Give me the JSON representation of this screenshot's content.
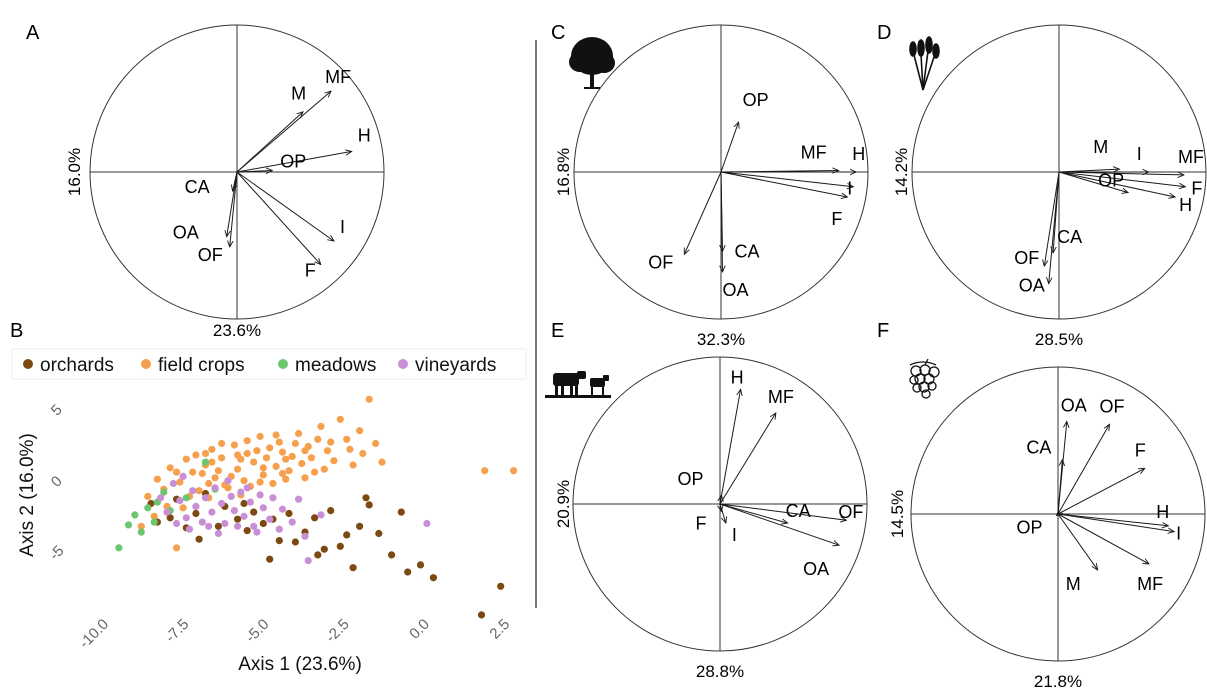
{
  "colors": {
    "orchards": "#7b4a12",
    "field_crops": "#f6a04d",
    "meadows": "#6cc66f",
    "vineyards": "#c98fd6",
    "ink": "#1a1a1a"
  },
  "chart_data": [
    {
      "id": "A",
      "type": "pca-correlation-circle",
      "panel_label": "A",
      "icon": "",
      "xlabel": "23.6%",
      "ylabel": "16.0%",
      "vectors": [
        {
          "label": "M",
          "x": 0.45,
          "y": 0.41
        },
        {
          "label": "MF",
          "x": 0.64,
          "y": 0.55
        },
        {
          "label": "H",
          "x": 0.78,
          "y": 0.14
        },
        {
          "label": "OP",
          "x": 0.24,
          "y": 0.01
        },
        {
          "label": "I",
          "x": 0.66,
          "y": -0.47
        },
        {
          "label": "F",
          "x": 0.57,
          "y": -0.63
        },
        {
          "label": "CA",
          "x": -0.03,
          "y": -0.13
        },
        {
          "label": "OA",
          "x": -0.07,
          "y": -0.44
        },
        {
          "label": "OF",
          "x": -0.05,
          "y": -0.51
        }
      ]
    },
    {
      "id": "B",
      "type": "scatter",
      "panel_label": "B",
      "title": "",
      "xlabel": "Axis 1 (23.6%)",
      "ylabel": "Axis 2 (16.0%)",
      "xlim": [
        -10.6,
        2.8
      ],
      "ylim": [
        -8.9,
        6.3
      ],
      "xticks": [
        -10.0,
        -7.5,
        -5.0,
        -2.5,
        0.0,
        2.5
      ],
      "xtick_labels": [
        "-10.0",
        "-7.5",
        "-5.0",
        "-2.5",
        "0.0",
        "2.5"
      ],
      "yticks": [
        5,
        0,
        -5
      ],
      "ytick_labels": [
        "5",
        "0",
        "-5"
      ],
      "legend_position": "top",
      "series": [
        {
          "name": "orchards",
          "color": "#7b4a12",
          "points": [
            [
              -8.7,
              -1.3
            ],
            [
              -8.5,
              -2.6
            ],
            [
              -8.1,
              -2.3
            ],
            [
              -7.9,
              -1.0
            ],
            [
              -7.6,
              -3.0
            ],
            [
              -7.3,
              -2.0
            ],
            [
              -7.0,
              -0.6
            ],
            [
              -6.6,
              -2.9
            ],
            [
              -6.4,
              -1.5
            ],
            [
              -6.0,
              -2.4
            ],
            [
              -5.7,
              -3.2
            ],
            [
              -5.5,
              -1.9
            ],
            [
              -5.2,
              -2.7
            ],
            [
              -5.0,
              -5.2
            ],
            [
              -4.7,
              -3.9
            ],
            [
              -4.4,
              -2.0
            ],
            [
              -4.2,
              -4.0
            ],
            [
              -3.9,
              -3.3
            ],
            [
              -3.6,
              -2.3
            ],
            [
              -3.3,
              -4.5
            ],
            [
              -3.1,
              -1.8
            ],
            [
              -2.8,
              -4.3
            ],
            [
              -2.6,
              -3.5
            ],
            [
              -2.4,
              -5.8
            ],
            [
              -2.2,
              -2.9
            ],
            [
              -1.9,
              -1.4
            ],
            [
              -1.6,
              -3.4
            ],
            [
              -1.2,
              -4.9
            ],
            [
              -0.9,
              -1.9
            ],
            [
              -0.7,
              -6.1
            ],
            [
              -0.3,
              -5.6
            ],
            [
              0.1,
              -6.5
            ],
            [
              1.6,
              -9.1
            ],
            [
              2.2,
              -7.1
            ],
            [
              -2.0,
              -0.9
            ],
            [
              -5.8,
              -1.3
            ],
            [
              -7.2,
              -3.8
            ],
            [
              -4.9,
              -2.4
            ],
            [
              -3.5,
              -4.9
            ]
          ]
        },
        {
          "name": "field crops",
          "color": "#f6a04d",
          "points": [
            [
              -9.0,
              -2.9
            ],
            [
              -8.8,
              -0.8
            ],
            [
              -8.5,
              0.4
            ],
            [
              -8.3,
              -0.3
            ],
            [
              -8.1,
              1.2
            ],
            [
              -7.9,
              -4.4
            ],
            [
              -7.8,
              0.2
            ],
            [
              -7.6,
              1.8
            ],
            [
              -7.4,
              0.9
            ],
            [
              -7.2,
              -0.4
            ],
            [
              -7.0,
              1.4
            ],
            [
              -6.8,
              2.5
            ],
            [
              -6.7,
              0.5
            ],
            [
              -6.5,
              1.9
            ],
            [
              -6.3,
              -0.2
            ],
            [
              -6.1,
              2.8
            ],
            [
              -6.0,
              1.1
            ],
            [
              -5.8,
              0.3
            ],
            [
              -5.7,
              2.2
            ],
            [
              -5.5,
              1.6
            ],
            [
              -5.3,
              3.4
            ],
            [
              -5.2,
              0.7
            ],
            [
              -5.0,
              2.6
            ],
            [
              -4.8,
              1.3
            ],
            [
              -4.7,
              3.0
            ],
            [
              -4.5,
              0.4
            ],
            [
              -4.3,
              2.0
            ],
            [
              -4.1,
              3.6
            ],
            [
              -4.0,
              1.5
            ],
            [
              -3.8,
              2.7
            ],
            [
              -3.6,
              0.9
            ],
            [
              -3.4,
              4.1
            ],
            [
              -3.2,
              2.4
            ],
            [
              -3.0,
              1.7
            ],
            [
              -2.8,
              4.6
            ],
            [
              -2.6,
              3.2
            ],
            [
              -2.4,
              1.4
            ],
            [
              -2.2,
              3.8
            ],
            [
              -2.1,
              2.2
            ],
            [
              -1.9,
              6.0
            ],
            [
              -1.7,
              2.9
            ],
            [
              -1.5,
              1.6
            ],
            [
              1.7,
              1.0
            ],
            [
              2.6,
              1.0
            ],
            [
              -7.1,
              0.8
            ],
            [
              -6.9,
              -0.9
            ],
            [
              -6.6,
              1.0
            ],
            [
              -6.2,
              0.6
            ],
            [
              -5.9,
              1.8
            ],
            [
              -5.6,
              -0.1
            ],
            [
              -5.4,
              2.4
            ],
            [
              -5.1,
              1.9
            ],
            [
              -4.9,
              0.1
            ],
            [
              -4.6,
              2.3
            ],
            [
              -4.4,
              1.0
            ],
            [
              -4.2,
              2.9
            ],
            [
              -3.9,
              0.5
            ],
            [
              -3.7,
              1.9
            ],
            [
              -3.5,
              3.2
            ],
            [
              -3.3,
              1.1
            ],
            [
              -8.6,
              -2.2
            ],
            [
              -7.7,
              -1.6
            ],
            [
              -7.5,
              -0.8
            ],
            [
              -6.4,
              0.0
            ],
            [
              -5.9,
              -0.7
            ],
            [
              -6.8,
              1.6
            ],
            [
              -6.0,
              2.1
            ],
            [
              -5.2,
              1.2
            ],
            [
              -4.5,
              1.8
            ],
            [
              -3.9,
              2.4
            ],
            [
              -7.3,
              2.1
            ],
            [
              -6.5,
              2.9
            ],
            [
              -5.7,
              3.1
            ],
            [
              -4.8,
              3.5
            ],
            [
              -3.1,
              3.0
            ],
            [
              -2.5,
              2.5
            ],
            [
              -7.9,
              0.9
            ],
            [
              -6.9,
              0.1
            ],
            [
              -5.3,
              0.2
            ],
            [
              -4.6,
              0.8
            ],
            [
              -8.2,
              -1.5
            ],
            [
              -7.0,
              2.2
            ]
          ]
        },
        {
          "name": "meadows",
          "color": "#6cc66f",
          "points": [
            [
              -9.7,
              -4.4
            ],
            [
              -9.4,
              -2.8
            ],
            [
              -9.2,
              -2.1
            ],
            [
              -9.0,
              -3.3
            ],
            [
              -8.8,
              -1.6
            ],
            [
              -8.6,
              -2.6
            ],
            [
              -8.5,
              -1.2
            ],
            [
              -8.3,
              -0.5
            ],
            [
              -8.1,
              -1.8
            ],
            [
              -7.6,
              -0.9
            ],
            [
              -7.0,
              1.6
            ],
            [
              -6.7,
              -0.3
            ]
          ]
        },
        {
          "name": "vineyards",
          "color": "#c98fd6",
          "points": [
            [
              -8.4,
              -0.9
            ],
            [
              -8.2,
              -1.9
            ],
            [
              -8.0,
              0.1
            ],
            [
              -7.8,
              -1.1
            ],
            [
              -7.6,
              -2.3
            ],
            [
              -7.4,
              -0.4
            ],
            [
              -7.3,
              -1.5
            ],
            [
              -7.1,
              -2.6
            ],
            [
              -7.0,
              -0.9
            ],
            [
              -6.8,
              -1.9
            ],
            [
              -6.7,
              -0.2
            ],
            [
              -6.5,
              -1.3
            ],
            [
              -6.4,
              -2.7
            ],
            [
              -6.2,
              -0.8
            ],
            [
              -6.1,
              -1.8
            ],
            [
              -5.9,
              -0.5
            ],
            [
              -5.8,
              -2.2
            ],
            [
              -5.6,
              -1.2
            ],
            [
              -5.5,
              -2.9
            ],
            [
              -5.3,
              -0.7
            ],
            [
              -5.2,
              -1.6
            ],
            [
              -5.0,
              -2.4
            ],
            [
              -4.9,
              -0.9
            ],
            [
              -4.7,
              -3.1
            ],
            [
              -4.6,
              -1.7
            ],
            [
              -4.3,
              -2.6
            ],
            [
              -4.1,
              -1.0
            ],
            [
              -3.9,
              -3.6
            ],
            [
              -3.8,
              -5.3
            ],
            [
              -3.4,
              -2.1
            ],
            [
              -0.1,
              -2.7
            ],
            [
              -7.9,
              -2.7
            ],
            [
              -7.5,
              -3.1
            ],
            [
              -6.9,
              -2.9
            ],
            [
              -6.6,
              -3.4
            ],
            [
              -6.0,
              -2.9
            ],
            [
              -5.4,
              -3.3
            ],
            [
              -5.7,
              -0.2
            ],
            [
              -6.3,
              0.3
            ],
            [
              -7.7,
              0.6
            ]
          ]
        }
      ]
    },
    {
      "id": "C",
      "type": "pca-correlation-circle",
      "panel_label": "C",
      "icon": "tree-icon",
      "xlabel": "32.3%",
      "ylabel": "16.8%",
      "vectors": [
        {
          "label": "OP",
          "x": 0.12,
          "y": 0.34
        },
        {
          "label": "MF",
          "x": 0.8,
          "y": 0.01
        },
        {
          "label": "H",
          "x": 0.92,
          "y": 0.0
        },
        {
          "label": "I",
          "x": 0.9,
          "y": -0.1
        },
        {
          "label": "F",
          "x": 0.86,
          "y": -0.17
        },
        {
          "label": "CA",
          "x": 0.01,
          "y": -0.54
        },
        {
          "label": "OA",
          "x": 0.01,
          "y": -0.68
        },
        {
          "label": "OF",
          "x": -0.25,
          "y": -0.56
        }
      ]
    },
    {
      "id": "D",
      "type": "pca-correlation-circle",
      "panel_label": "D",
      "icon": "wheat-icon",
      "xlabel": "28.5%",
      "ylabel": "14.2%",
      "vectors": [
        {
          "label": "M",
          "x": 0.41,
          "y": 0.02
        },
        {
          "label": "I",
          "x": 0.61,
          "y": 0.0
        },
        {
          "label": "MF",
          "x": 0.85,
          "y": -0.02
        },
        {
          "label": "F",
          "x": 0.86,
          "y": -0.1
        },
        {
          "label": "H",
          "x": 0.79,
          "y": -0.17
        },
        {
          "label": "OP",
          "x": 0.47,
          "y": -0.14
        },
        {
          "label": "CA",
          "x": -0.04,
          "y": -0.55
        },
        {
          "label": "OF",
          "x": -0.1,
          "y": -0.64
        },
        {
          "label": "OA",
          "x": -0.07,
          "y": -0.76
        }
      ]
    },
    {
      "id": "E",
      "type": "pca-correlation-circle",
      "panel_label": "E",
      "icon": "cattle-icon",
      "xlabel": "28.8%",
      "ylabel": "20.9%",
      "vectors": [
        {
          "label": "H",
          "x": 0.14,
          "y": 0.78
        },
        {
          "label": "MF",
          "x": 0.38,
          "y": 0.62
        },
        {
          "label": "OP",
          "x": 0.01,
          "y": 0.06
        },
        {
          "label": "F",
          "x": 0.01,
          "y": -0.05
        },
        {
          "label": "I",
          "x": 0.04,
          "y": -0.13
        },
        {
          "label": "CA",
          "x": 0.46,
          "y": -0.13
        },
        {
          "label": "OF",
          "x": 0.86,
          "y": -0.11
        },
        {
          "label": "OA",
          "x": 0.81,
          "y": -0.28
        }
      ]
    },
    {
      "id": "F",
      "type": "pca-correlation-circle",
      "panel_label": "F",
      "icon": "grapes-icon",
      "xlabel": "21.8%",
      "ylabel": "14.5%",
      "vectors": [
        {
          "label": "OA",
          "x": 0.06,
          "y": 0.63
        },
        {
          "label": "CA",
          "x": 0.03,
          "y": 0.37
        },
        {
          "label": "OF",
          "x": 0.35,
          "y": 0.61
        },
        {
          "label": "F",
          "x": 0.59,
          "y": 0.31
        },
        {
          "label": "H",
          "x": 0.75,
          "y": -0.08
        },
        {
          "label": "I",
          "x": 0.79,
          "y": -0.12
        },
        {
          "label": "MF",
          "x": 0.62,
          "y": -0.34
        },
        {
          "label": "M",
          "x": 0.27,
          "y": -0.38
        },
        {
          "label": "OP",
          "x": -0.01,
          "y": -0.01
        }
      ]
    }
  ]
}
